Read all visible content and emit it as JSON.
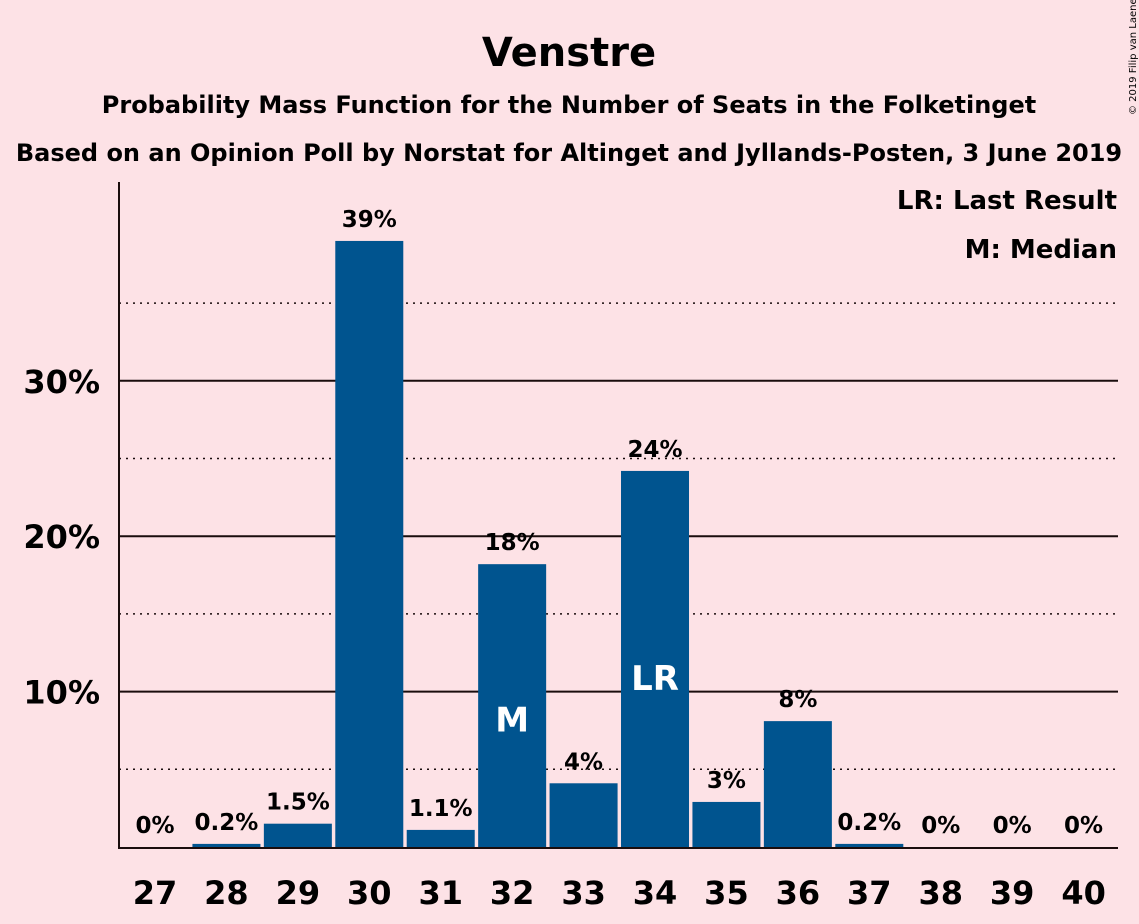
{
  "copyright": "© 2019 Filip van Laenen",
  "chart_data": {
    "type": "bar",
    "title": "Venstre",
    "subtitle": "Probability Mass Function for the Number of Seats in the Folketinget",
    "subtitle2": "Based on an Opinion Poll by Norstat for Altinget and Jyllands-Posten, 3 June 2019",
    "categories": [
      "27",
      "28",
      "29",
      "30",
      "31",
      "32",
      "33",
      "34",
      "35",
      "36",
      "37",
      "38",
      "39",
      "40"
    ],
    "values": [
      0,
      0.2,
      1.5,
      39,
      1.1,
      18.2,
      4.1,
      24.2,
      2.9,
      8.1,
      0.2,
      0,
      0,
      0
    ],
    "data_labels": [
      "0%",
      "0.2%",
      "1.5%",
      "39%",
      "1.1%",
      "18%",
      "4%",
      "24%",
      "3%",
      "8%",
      "0.2%",
      "0%",
      "0%",
      "0%"
    ],
    "ylim": [
      0,
      42.7
    ],
    "yticks": [
      10,
      20,
      30
    ],
    "ytick_labels": [
      "10%",
      "20%",
      "30%"
    ],
    "minor_gridlines": [
      5,
      15,
      25,
      35
    ],
    "grid": true,
    "xlabel": "",
    "ylabel": "",
    "bar_color": "#00548f",
    "background_color": "#fde2e6",
    "markers": [
      {
        "category": "32",
        "label": "M"
      },
      {
        "category": "34",
        "label": "LR"
      }
    ],
    "legend": {
      "placement": "top-right",
      "entries": [
        "LR: Last Result",
        "M: Median"
      ]
    }
  }
}
